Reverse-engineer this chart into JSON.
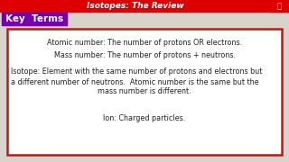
{
  "title": "Isotopes: The Review",
  "title_bg": "#dd0000",
  "title_text_color": "#ffffff",
  "bg_color": "#c8c8c8",
  "main_bg_color": "#d8d4cc",
  "key_terms_label": "Key  Terms",
  "key_terms_bg": "#7700aa",
  "key_terms_text_color": "#ffffff",
  "box_border_color": "#cc1111",
  "box_bg": "#ffffff",
  "text_color": "#222222",
  "line1": "Atomic number: The number of protons OR electrons.",
  "line2": "Mass number: The number of protons + neutrons.",
  "line3a": "Isotope: Element with the same number of protons and electrons but",
  "line3b": "a different number of neutrons.  Atomic number is the same but the",
  "line3c": "mass number is different.",
  "line4": "Ion: Charged particles.",
  "font_size_title": 6.5,
  "font_size_body": 5.8,
  "font_size_key": 7.5
}
